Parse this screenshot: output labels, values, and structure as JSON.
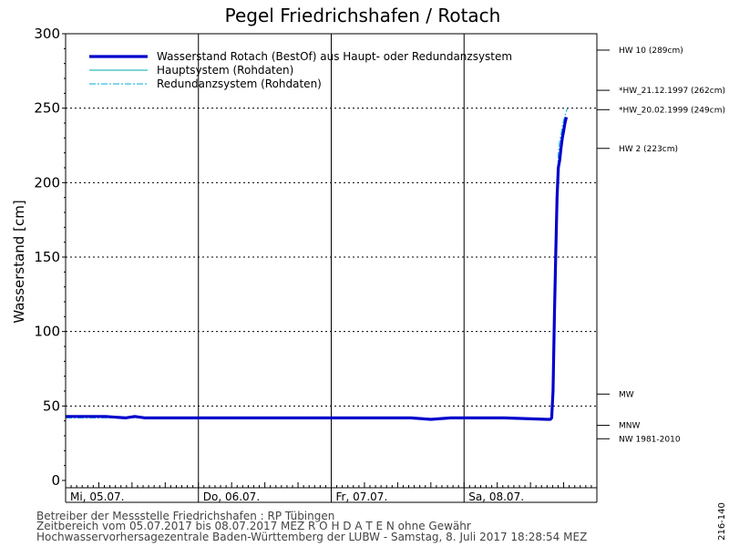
{
  "chart_data": {
    "type": "line",
    "title": "Pegel Friedrichshafen / Rotach",
    "ylabel": "Wasserstand [cm]",
    "xlabel": "",
    "ylim": [
      0,
      300
    ],
    "yticks": [
      0,
      50,
      100,
      150,
      200,
      250,
      300
    ],
    "grid": true,
    "legend_position": "top-left",
    "x_tick_labels": [
      {
        "x": 0,
        "label": "Mi, 05.07."
      },
      {
        "x": 1,
        "label": "Do, 06.07."
      },
      {
        "x": 2,
        "label": "Fr, 07.07."
      },
      {
        "x": 3,
        "label": "Sa, 08.07."
      }
    ],
    "xlim": [
      0,
      4
    ],
    "series": [
      {
        "name": "Wasserstand Rotach  (BestOf) aus Haupt- oder Redundanzsystem",
        "color": "#0000cc",
        "style": "thick",
        "x": [
          0,
          0.3,
          0.45,
          0.52,
          0.6,
          0.75,
          0.9,
          1.0,
          1.4,
          1.8,
          2.2,
          2.6,
          2.75,
          2.9,
          3.3,
          3.63,
          3.65,
          3.66,
          3.67,
          3.68,
          3.69,
          3.7,
          3.71,
          3.72,
          3.73,
          3.74,
          3.75,
          3.76,
          3.77
        ],
        "y": [
          43,
          43,
          42,
          43,
          42,
          42,
          42,
          42,
          42,
          42,
          42,
          42,
          41,
          42,
          42,
          41,
          41,
          42,
          60,
          110,
          150,
          190,
          210,
          215,
          223,
          230,
          235,
          240,
          244
        ]
      },
      {
        "name": "Hauptsystem (Rohdaten)",
        "color": "#00aaaa",
        "style": "thin",
        "x": [
          0,
          0.3,
          0.45,
          0.52,
          0.6,
          0.75,
          0.9,
          1.0,
          1.4,
          1.8,
          2.2,
          2.6,
          2.75,
          2.9,
          3.3,
          3.63,
          3.65,
          3.66,
          3.67,
          3.68,
          3.69,
          3.7,
          3.71,
          3.72,
          3.73,
          3.74,
          3.75,
          3.76,
          3.77
        ],
        "y": [
          43,
          43,
          42,
          43,
          42,
          42,
          42,
          42,
          42,
          42,
          42,
          42,
          41,
          42,
          42,
          41,
          41,
          42,
          60,
          110,
          150,
          190,
          210,
          215,
          223,
          230,
          235,
          240,
          244
        ]
      },
      {
        "name": "Redundanzsystem (Rohdaten)",
        "color": "#00aadd",
        "style": "dashdot",
        "x": [
          0,
          0.3,
          0.45,
          0.52,
          0.6,
          0.75,
          0.9,
          1.0,
          1.4,
          1.8,
          2.2,
          2.6,
          2.75,
          2.9,
          3.3,
          3.63,
          3.65,
          3.66,
          3.67,
          3.68,
          3.69,
          3.7,
          3.71,
          3.72,
          3.73,
          3.74,
          3.75,
          3.76,
          3.77,
          3.78
        ],
        "y": [
          42,
          42,
          42,
          42,
          42,
          42,
          42,
          42,
          42,
          42,
          42,
          42,
          41,
          42,
          42,
          41,
          41,
          42,
          70,
          130,
          170,
          200,
          220,
          228,
          232,
          238,
          242,
          245,
          248,
          250
        ]
      }
    ],
    "reference_levels": [
      {
        "label": "HW 10 (289cm)",
        "value": 289
      },
      {
        "label": "*HW_21.12.1997 (262cm)",
        "value": 262
      },
      {
        "label": "*HW_20.02.1999 (249cm)",
        "value": 249
      },
      {
        "label": "HW 2 (223cm)",
        "value": 223
      },
      {
        "label": "MW",
        "value": 58
      },
      {
        "label": "MNW",
        "value": 37
      },
      {
        "label": "NW 1981-2010",
        "value": 28
      }
    ]
  },
  "footer": {
    "line1": "Betreiber der Messstelle Friedrichshafen : RP Tübingen",
    "line2": "Zeitbereich vom 05.07.2017 bis 08.07.2017     MEZ     R O H D A T E N  ohne Gewähr",
    "line3": "Hochwasservorhersagezentrale Baden-Württemberg der LUBW - Samstag, 8. Juli 2017 18:28:54 MEZ"
  },
  "side_code": "216-140"
}
